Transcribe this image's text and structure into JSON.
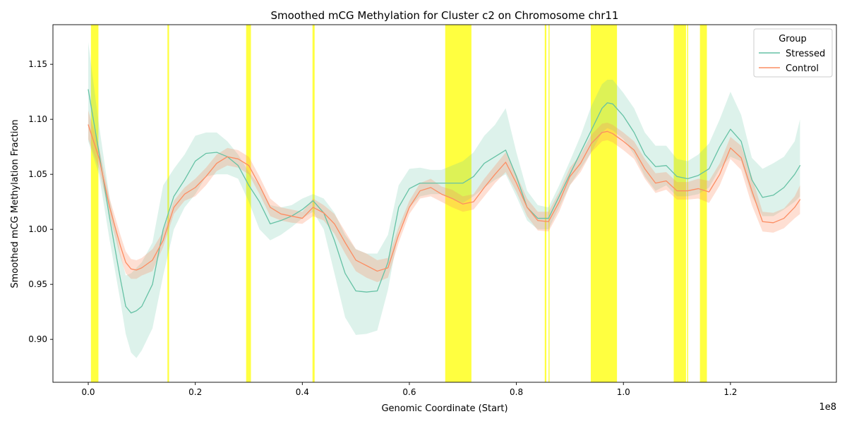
{
  "chart_data": {
    "type": "line",
    "title": "Smoothed mCG Methylation for Cluster c2 on Chromosome chr11",
    "xlabel": "Genomic Coordinate (Start)",
    "ylabel": "Smoothed mCG Methylation Fraction",
    "x_offset_label": "1e8",
    "xlim": [
      -0.066,
      1.398
    ],
    "ylim": [
      0.861,
      1.186
    ],
    "x_scale_factor": 100000000,
    "x_ticks": [
      0.0,
      0.2,
      0.4,
      0.6,
      0.8,
      1.0,
      1.2
    ],
    "x_tick_labels": [
      "0.0",
      "0.2",
      "0.4",
      "0.6",
      "0.8",
      "1.0",
      "1.2"
    ],
    "y_ticks": [
      0.9,
      0.95,
      1.0,
      1.05,
      1.1,
      1.15
    ],
    "y_tick_labels": [
      "0.90",
      "0.95",
      "1.00",
      "1.05",
      "1.10",
      "1.15"
    ],
    "grid": false,
    "legend": {
      "title": "Group",
      "position": "top-right",
      "entries": [
        "Stressed",
        "Control"
      ]
    },
    "highlight_color": "#ffff00",
    "highlight_regions": [
      [
        0.005,
        0.019
      ],
      [
        0.148,
        0.151
      ],
      [
        0.295,
        0.304
      ],
      [
        0.419,
        0.423
      ],
      [
        0.667,
        0.716
      ],
      [
        0.853,
        0.856
      ],
      [
        0.86,
        0.862
      ],
      [
        0.939,
        0.988
      ],
      [
        1.094,
        1.117
      ],
      [
        1.119,
        1.121
      ],
      [
        1.143,
        1.156
      ]
    ],
    "series": [
      {
        "name": "Stressed",
        "color": "#66c2a5",
        "band_color": "#66c2a5",
        "x": [
          0.0,
          0.02,
          0.04,
          0.06,
          0.07,
          0.08,
          0.09,
          0.1,
          0.12,
          0.14,
          0.16,
          0.18,
          0.2,
          0.22,
          0.24,
          0.26,
          0.28,
          0.3,
          0.32,
          0.34,
          0.36,
          0.38,
          0.4,
          0.42,
          0.44,
          0.46,
          0.48,
          0.5,
          0.52,
          0.54,
          0.56,
          0.58,
          0.6,
          0.62,
          0.64,
          0.66,
          0.68,
          0.7,
          0.72,
          0.74,
          0.76,
          0.78,
          0.8,
          0.82,
          0.84,
          0.86,
          0.88,
          0.9,
          0.92,
          0.94,
          0.96,
          0.97,
          0.98,
          1.0,
          1.02,
          1.04,
          1.06,
          1.08,
          1.1,
          1.12,
          1.14,
          1.16,
          1.18,
          1.2,
          1.22,
          1.24,
          1.26,
          1.28,
          1.3,
          1.32,
          1.33
        ],
        "y": [
          1.127,
          1.07,
          1.01,
          0.955,
          0.93,
          0.924,
          0.926,
          0.93,
          0.95,
          1.0,
          1.03,
          1.045,
          1.062,
          1.069,
          1.07,
          1.066,
          1.058,
          1.04,
          1.025,
          1.005,
          1.008,
          1.012,
          1.018,
          1.026,
          1.015,
          0.99,
          0.96,
          0.944,
          0.943,
          0.944,
          0.97,
          1.02,
          1.037,
          1.042,
          1.042,
          1.042,
          1.042,
          1.042,
          1.048,
          1.06,
          1.066,
          1.072,
          1.048,
          1.02,
          1.01,
          1.01,
          1.03,
          1.05,
          1.07,
          1.09,
          1.11,
          1.115,
          1.114,
          1.103,
          1.088,
          1.068,
          1.057,
          1.058,
          1.048,
          1.046,
          1.049,
          1.055,
          1.075,
          1.091,
          1.08,
          1.045,
          1.029,
          1.031,
          1.038,
          1.05,
          1.058
        ],
        "lower": [
          1.08,
          1.05,
          0.99,
          0.935,
          0.905,
          0.888,
          0.883,
          0.89,
          0.91,
          0.958,
          1.0,
          1.02,
          1.032,
          1.048,
          1.05,
          1.05,
          1.046,
          1.025,
          1.0,
          0.99,
          0.995,
          1.002,
          1.01,
          1.016,
          1.0,
          0.96,
          0.92,
          0.904,
          0.905,
          0.908,
          0.945,
          0.998,
          1.02,
          1.03,
          1.032,
          1.032,
          1.028,
          1.024,
          1.03,
          1.038,
          1.045,
          1.05,
          1.03,
          1.008,
          1.0,
          1.0,
          1.02,
          1.04,
          1.055,
          1.07,
          1.088,
          1.092,
          1.09,
          1.082,
          1.068,
          1.048,
          1.035,
          1.04,
          1.03,
          1.03,
          1.032,
          1.038,
          1.055,
          1.066,
          1.062,
          1.03,
          1.012,
          1.012,
          1.018,
          1.025,
          1.03
        ],
        "upper": [
          1.17,
          1.095,
          1.028,
          0.978,
          0.958,
          0.96,
          0.965,
          0.97,
          0.988,
          1.04,
          1.055,
          1.068,
          1.085,
          1.088,
          1.088,
          1.08,
          1.068,
          1.052,
          1.04,
          1.022,
          1.02,
          1.022,
          1.028,
          1.032,
          1.028,
          1.015,
          0.995,
          0.982,
          0.978,
          0.978,
          0.995,
          1.04,
          1.055,
          1.056,
          1.054,
          1.054,
          1.058,
          1.062,
          1.07,
          1.085,
          1.095,
          1.11,
          1.07,
          1.035,
          1.022,
          1.02,
          1.04,
          1.062,
          1.085,
          1.112,
          1.132,
          1.136,
          1.136,
          1.124,
          1.11,
          1.088,
          1.076,
          1.076,
          1.064,
          1.062,
          1.068,
          1.078,
          1.1,
          1.125,
          1.104,
          1.065,
          1.055,
          1.06,
          1.066,
          1.08,
          1.1
        ]
      },
      {
        "name": "Control",
        "color": "#fc8d62",
        "band_color": "#fc8d62",
        "x": [
          0.0,
          0.02,
          0.04,
          0.06,
          0.07,
          0.08,
          0.09,
          0.1,
          0.12,
          0.14,
          0.16,
          0.18,
          0.2,
          0.22,
          0.24,
          0.26,
          0.28,
          0.3,
          0.32,
          0.34,
          0.36,
          0.38,
          0.4,
          0.42,
          0.44,
          0.46,
          0.48,
          0.5,
          0.52,
          0.54,
          0.56,
          0.58,
          0.6,
          0.62,
          0.64,
          0.66,
          0.68,
          0.7,
          0.72,
          0.74,
          0.76,
          0.78,
          0.8,
          0.82,
          0.84,
          0.86,
          0.88,
          0.9,
          0.92,
          0.94,
          0.96,
          0.97,
          0.98,
          1.0,
          1.02,
          1.04,
          1.06,
          1.08,
          1.1,
          1.12,
          1.14,
          1.16,
          1.18,
          1.2,
          1.22,
          1.24,
          1.26,
          1.28,
          1.3,
          1.32,
          1.33
        ],
        "y": [
          1.095,
          1.065,
          1.02,
          0.985,
          0.97,
          0.964,
          0.963,
          0.965,
          0.972,
          0.99,
          1.02,
          1.032,
          1.038,
          1.048,
          1.06,
          1.066,
          1.064,
          1.058,
          1.04,
          1.02,
          1.014,
          1.012,
          1.01,
          1.02,
          1.015,
          1.005,
          0.988,
          0.972,
          0.967,
          0.962,
          0.965,
          0.995,
          1.02,
          1.035,
          1.038,
          1.032,
          1.028,
          1.023,
          1.025,
          1.038,
          1.05,
          1.061,
          1.042,
          1.02,
          1.008,
          1.007,
          1.025,
          1.048,
          1.06,
          1.078,
          1.088,
          1.089,
          1.087,
          1.08,
          1.072,
          1.055,
          1.042,
          1.044,
          1.035,
          1.035,
          1.037,
          1.034,
          1.05,
          1.074,
          1.065,
          1.035,
          1.007,
          1.006,
          1.01,
          1.02,
          1.027
        ],
        "lower": [
          1.082,
          1.055,
          1.012,
          0.975,
          0.96,
          0.955,
          0.955,
          0.958,
          0.962,
          0.984,
          1.014,
          1.026,
          1.03,
          1.04,
          1.053,
          1.058,
          1.056,
          1.05,
          1.032,
          1.012,
          1.008,
          1.006,
          1.005,
          1.012,
          1.008,
          0.996,
          0.978,
          0.962,
          0.956,
          0.952,
          0.956,
          0.988,
          1.014,
          1.028,
          1.03,
          1.025,
          1.02,
          1.016,
          1.018,
          1.03,
          1.042,
          1.052,
          1.034,
          1.012,
          0.999,
          0.998,
          1.016,
          1.04,
          1.052,
          1.07,
          1.08,
          1.081,
          1.079,
          1.072,
          1.064,
          1.046,
          1.033,
          1.036,
          1.027,
          1.027,
          1.028,
          1.024,
          1.04,
          1.064,
          1.054,
          1.022,
          0.998,
          0.997,
          1.001,
          1.01,
          1.014
        ],
        "upper": [
          1.108,
          1.075,
          1.028,
          0.995,
          0.98,
          0.973,
          0.972,
          0.974,
          0.982,
          0.998,
          1.026,
          1.038,
          1.046,
          1.056,
          1.068,
          1.074,
          1.072,
          1.066,
          1.048,
          1.028,
          1.02,
          1.018,
          1.016,
          1.028,
          1.022,
          1.014,
          0.998,
          0.982,
          0.978,
          0.972,
          0.974,
          1.002,
          1.026,
          1.042,
          1.046,
          1.039,
          1.036,
          1.03,
          1.032,
          1.046,
          1.058,
          1.07,
          1.05,
          1.028,
          1.016,
          1.016,
          1.034,
          1.056,
          1.068,
          1.086,
          1.096,
          1.097,
          1.095,
          1.088,
          1.08,
          1.064,
          1.051,
          1.052,
          1.043,
          1.043,
          1.046,
          1.044,
          1.06,
          1.084,
          1.076,
          1.048,
          1.016,
          1.015,
          1.019,
          1.03,
          1.04
        ]
      }
    ]
  }
}
